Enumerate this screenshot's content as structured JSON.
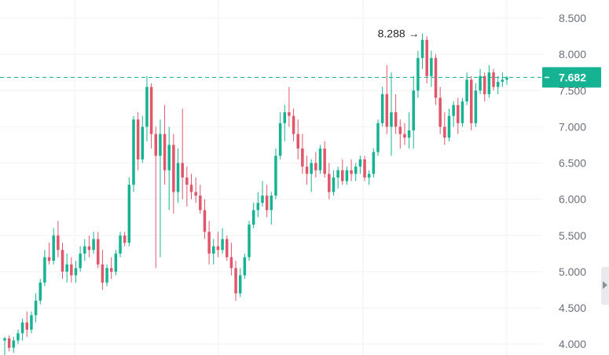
{
  "chart_data": {
    "type": "candlestick",
    "y_axis": {
      "ticks": [
        "4.000",
        "4.500",
        "5.000",
        "5.500",
        "6.000",
        "6.500",
        "7.000",
        "7.500",
        "8.000",
        "8.500"
      ],
      "range": [
        3.85,
        8.75
      ],
      "position": "right"
    },
    "current_price": {
      "value": 7.682,
      "label": "7.682",
      "color": "#16b393"
    },
    "high_marker": {
      "value": 8.288,
      "label": "8.288",
      "arrow": "→"
    },
    "colors": {
      "up": "#16b393",
      "down": "#e0566b",
      "grid": "#f1f2f4"
    },
    "candles": [
      [
        4.05,
        4.1,
        3.85,
        4.08
      ],
      [
        4.08,
        4.12,
        3.9,
        3.95
      ],
      [
        3.95,
        4.1,
        3.88,
        4.05
      ],
      [
        4.05,
        4.2,
        4.0,
        4.15
      ],
      [
        4.15,
        4.35,
        4.05,
        4.3
      ],
      [
        4.3,
        4.45,
        4.1,
        4.2
      ],
      [
        4.2,
        4.45,
        4.15,
        4.4
      ],
      [
        4.4,
        4.7,
        4.3,
        4.6
      ],
      [
        4.6,
        4.9,
        4.55,
        4.85
      ],
      [
        4.85,
        5.3,
        4.8,
        5.2
      ],
      [
        5.2,
        5.4,
        5.1,
        5.15
      ],
      [
        5.15,
        5.6,
        5.1,
        5.5
      ],
      [
        5.5,
        5.7,
        5.2,
        5.3
      ],
      [
        5.3,
        5.4,
        4.9,
        5.0
      ],
      [
        5.0,
        5.25,
        4.85,
        5.1
      ],
      [
        5.1,
        5.2,
        4.85,
        4.95
      ],
      [
        4.95,
        5.15,
        4.85,
        5.05
      ],
      [
        5.05,
        5.35,
        5.0,
        5.25
      ],
      [
        5.25,
        5.45,
        5.15,
        5.35
      ],
      [
        5.35,
        5.5,
        5.2,
        5.3
      ],
      [
        5.3,
        5.55,
        5.25,
        5.45
      ],
      [
        5.45,
        5.55,
        5.05,
        5.1
      ],
      [
        5.1,
        5.3,
        4.75,
        4.85
      ],
      [
        4.85,
        5.1,
        4.8,
        5.05
      ],
      [
        5.05,
        5.2,
        4.9,
        5.0
      ],
      [
        5.0,
        5.3,
        4.95,
        5.25
      ],
      [
        5.25,
        5.55,
        5.2,
        5.5
      ],
      [
        5.5,
        5.55,
        5.35,
        5.4
      ],
      [
        5.4,
        6.3,
        5.35,
        6.2
      ],
      [
        6.2,
        7.15,
        6.1,
        7.1
      ],
      [
        7.1,
        7.2,
        6.4,
        6.55
      ],
      [
        6.55,
        7.15,
        6.5,
        7.0
      ],
      [
        7.0,
        7.7,
        6.8,
        7.55
      ],
      [
        7.55,
        7.6,
        6.7,
        6.9
      ],
      [
        6.9,
        7.0,
        5.05,
        6.6
      ],
      [
        6.6,
        7.1,
        5.2,
        6.9
      ],
      [
        6.9,
        7.3,
        6.2,
        6.4
      ],
      [
        6.4,
        7.0,
        5.85,
        6.75
      ],
      [
        6.75,
        6.9,
        5.8,
        6.1
      ],
      [
        6.1,
        6.7,
        5.95,
        6.5
      ],
      [
        6.5,
        7.25,
        6.0,
        6.3
      ],
      [
        6.3,
        6.45,
        5.9,
        6.2
      ],
      [
        6.2,
        6.35,
        6.0,
        6.1
      ],
      [
        6.1,
        6.3,
        5.95,
        6.05
      ],
      [
        6.05,
        6.2,
        5.8,
        5.85
      ],
      [
        5.85,
        6.0,
        5.45,
        5.55
      ],
      [
        5.55,
        5.7,
        5.1,
        5.25
      ],
      [
        5.25,
        5.45,
        5.1,
        5.35
      ],
      [
        5.35,
        5.55,
        5.2,
        5.3
      ],
      [
        5.3,
        5.6,
        5.25,
        5.45
      ],
      [
        5.45,
        5.5,
        5.15,
        5.2
      ],
      [
        5.2,
        5.4,
        4.95,
        5.05
      ],
      [
        5.05,
        5.15,
        4.6,
        4.7
      ],
      [
        4.7,
        5.05,
        4.65,
        4.95
      ],
      [
        4.95,
        5.25,
        4.9,
        5.2
      ],
      [
        5.2,
        5.7,
        5.15,
        5.65
      ],
      [
        5.65,
        5.95,
        5.6,
        5.85
      ],
      [
        5.85,
        6.1,
        5.75,
        5.95
      ],
      [
        5.95,
        6.25,
        5.9,
        6.05
      ],
      [
        6.05,
        6.2,
        5.75,
        5.85
      ],
      [
        5.85,
        6.1,
        5.65,
        6.05
      ],
      [
        6.05,
        6.7,
        6.0,
        6.6
      ],
      [
        6.6,
        7.2,
        6.55,
        7.05
      ],
      [
        7.05,
        7.3,
        6.8,
        7.2
      ],
      [
        7.2,
        7.55,
        7.0,
        7.15
      ],
      [
        7.15,
        7.25,
        6.8,
        6.9
      ],
      [
        6.9,
        7.1,
        6.55,
        6.7
      ],
      [
        6.7,
        6.9,
        6.35,
        6.45
      ],
      [
        6.45,
        6.6,
        6.2,
        6.35
      ],
      [
        6.35,
        6.55,
        6.1,
        6.5
      ],
      [
        6.5,
        6.65,
        6.3,
        6.4
      ],
      [
        6.4,
        6.75,
        6.35,
        6.7
      ],
      [
        6.7,
        6.8,
        6.3,
        6.35
      ],
      [
        6.35,
        6.5,
        6.0,
        6.1
      ],
      [
        6.1,
        6.4,
        6.05,
        6.3
      ],
      [
        6.3,
        6.45,
        6.15,
        6.4
      ],
      [
        6.4,
        6.55,
        6.2,
        6.25
      ],
      [
        6.25,
        6.45,
        6.2,
        6.4
      ],
      [
        6.4,
        6.55,
        6.25,
        6.35
      ],
      [
        6.35,
        6.5,
        6.25,
        6.45
      ],
      [
        6.45,
        6.6,
        6.35,
        6.55
      ],
      [
        6.55,
        6.6,
        6.25,
        6.3
      ],
      [
        6.3,
        6.4,
        6.2,
        6.35
      ],
      [
        6.35,
        6.7,
        6.3,
        6.65
      ],
      [
        6.65,
        7.1,
        6.6,
        7.05
      ],
      [
        7.05,
        7.55,
        7.0,
        7.45
      ],
      [
        7.45,
        7.85,
        6.9,
        7.0
      ],
      [
        7.0,
        7.75,
        6.6,
        7.2
      ],
      [
        7.2,
        7.45,
        6.9,
        7.0
      ],
      [
        7.0,
        7.1,
        6.7,
        6.9
      ],
      [
        6.9,
        7.05,
        6.75,
        6.85
      ],
      [
        6.85,
        7.2,
        6.7,
        6.95
      ],
      [
        6.95,
        7.7,
        6.7,
        7.5
      ],
      [
        7.5,
        8.05,
        7.4,
        7.95
      ],
      [
        7.95,
        8.288,
        7.8,
        8.2
      ],
      [
        8.2,
        8.25,
        7.6,
        7.7
      ],
      [
        7.7,
        8.05,
        7.55,
        7.95
      ],
      [
        7.95,
        8.0,
        7.3,
        7.4
      ],
      [
        7.4,
        7.55,
        6.9,
        7.0
      ],
      [
        7.0,
        7.2,
        6.75,
        6.85
      ],
      [
        6.85,
        7.25,
        6.8,
        7.15
      ],
      [
        7.15,
        7.35,
        7.0,
        7.3
      ],
      [
        7.3,
        7.4,
        6.9,
        7.05
      ],
      [
        7.05,
        7.4,
        7.0,
        7.35
      ],
      [
        7.35,
        7.75,
        7.3,
        7.65
      ],
      [
        7.65,
        7.7,
        6.95,
        7.05
      ],
      [
        7.05,
        7.6,
        7.0,
        7.5
      ],
      [
        7.5,
        7.8,
        7.45,
        7.7
      ],
      [
        7.7,
        7.75,
        7.35,
        7.45
      ],
      [
        7.45,
        7.85,
        7.4,
        7.75
      ],
      [
        7.75,
        7.8,
        7.5,
        7.55
      ],
      [
        7.55,
        7.7,
        7.45,
        7.62
      ],
      [
        7.62,
        7.75,
        7.55,
        7.65
      ],
      [
        7.65,
        7.7,
        7.58,
        7.682
      ]
    ]
  }
}
